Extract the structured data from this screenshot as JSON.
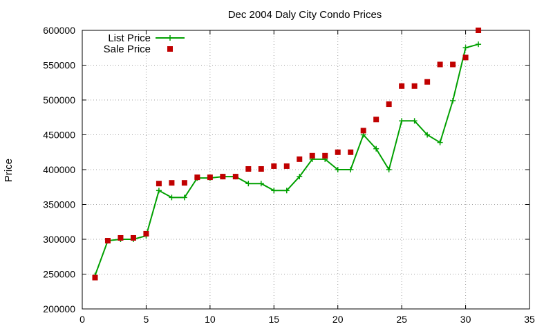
{
  "chart_data": {
    "type": "line",
    "title": "Dec 2004 Daly City Condo Prices",
    "xlabel": "",
    "ylabel": "Price",
    "xlim": [
      0,
      35
    ],
    "ylim": [
      200000,
      600000
    ],
    "xticks": [
      0,
      5,
      10,
      15,
      20,
      25,
      30,
      35
    ],
    "yticks": [
      200000,
      250000,
      300000,
      350000,
      400000,
      450000,
      500000,
      550000,
      600000
    ],
    "grid": true,
    "legend_position": "top-left",
    "series": [
      {
        "name": "List Price",
        "style": "line-plus",
        "color": "#00a000",
        "x": [
          1,
          2,
          3,
          4,
          5,
          6,
          7,
          8,
          9,
          10,
          11,
          12,
          13,
          14,
          15,
          16,
          17,
          18,
          19,
          20,
          21,
          22,
          23,
          24,
          25,
          26,
          27,
          28,
          29,
          30,
          31
        ],
        "y": [
          248000,
          298000,
          300000,
          300000,
          305000,
          370000,
          360000,
          360000,
          388000,
          388000,
          390000,
          390000,
          380000,
          380000,
          370000,
          370000,
          390000,
          415000,
          415000,
          400000,
          400000,
          450000,
          430000,
          400000,
          470000,
          470000,
          450000,
          439000,
          499000,
          575000,
          580000
        ]
      },
      {
        "name": "Sale Price",
        "style": "square-markers",
        "color": "#c00000",
        "x": [
          1,
          2,
          3,
          4,
          5,
          6,
          7,
          8,
          9,
          10,
          11,
          12,
          13,
          14,
          15,
          16,
          17,
          18,
          19,
          20,
          21,
          22,
          23,
          24,
          25,
          26,
          27,
          28,
          29,
          30,
          31
        ],
        "y": [
          245000,
          298000,
          302000,
          302000,
          308000,
          380000,
          381000,
          381000,
          389000,
          389000,
          390000,
          390000,
          401000,
          401000,
          405000,
          405000,
          415000,
          420000,
          420000,
          425000,
          425000,
          456000,
          472000,
          494000,
          520000,
          520000,
          526000,
          551000,
          551000,
          561000,
          600000
        ]
      }
    ]
  }
}
